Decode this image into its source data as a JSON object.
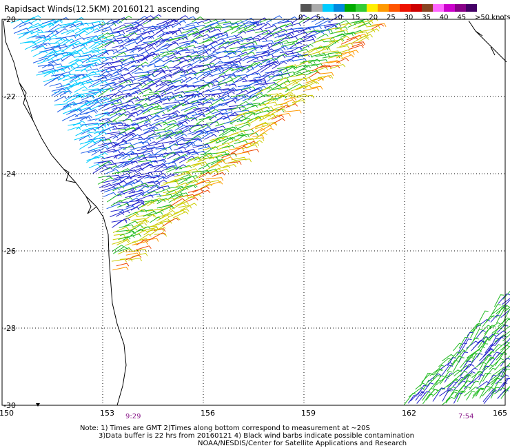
{
  "title": "Rapidsact Winds(12.5KM) 20160121 ascending",
  "colorbar": {
    "unit_label": ">50 knots",
    "labels": [
      "0",
      "5",
      "10",
      "15",
      "20",
      "25",
      "30",
      "35",
      "40",
      "45"
    ],
    "colors": [
      "#555555",
      "#aaaaaa",
      "#00ccff",
      "#0088dd",
      "#00aa00",
      "#33cc33",
      "#ffee00",
      "#ff9900",
      "#ff5500",
      "#ee1100",
      "#cc0000",
      "#884422",
      "#ff66ff",
      "#cc00cc",
      "#880088",
      "#440066"
    ]
  },
  "axes": {
    "x_ticks": [
      "150",
      "153",
      "156",
      "159",
      "162",
      "165"
    ],
    "y_ticks": [
      "-20",
      "-22",
      "-24",
      "-26",
      "-28",
      "-30"
    ]
  },
  "pass_times": [
    "9:29",
    "7:54"
  ],
  "notes": {
    "line1": "Note: 1) Times are GMT 2)Times along bottom correspond to measurement at ~20S",
    "line2": "3)Data buffer is 22 hrs from 20160121 4) Black wind barbs indicate possible contamination",
    "line3": "NOAA/NESDIS/Center for Satellite Applications and Research"
  },
  "colors": {
    "speed_5": "#00ccff",
    "speed_10": "#1e5ee8",
    "speed_15": "#2222cc",
    "speed_20": "#22bb22",
    "speed_25": "#cccc00",
    "speed_30": "#ff9900",
    "speed_35": "#ee4400"
  }
}
